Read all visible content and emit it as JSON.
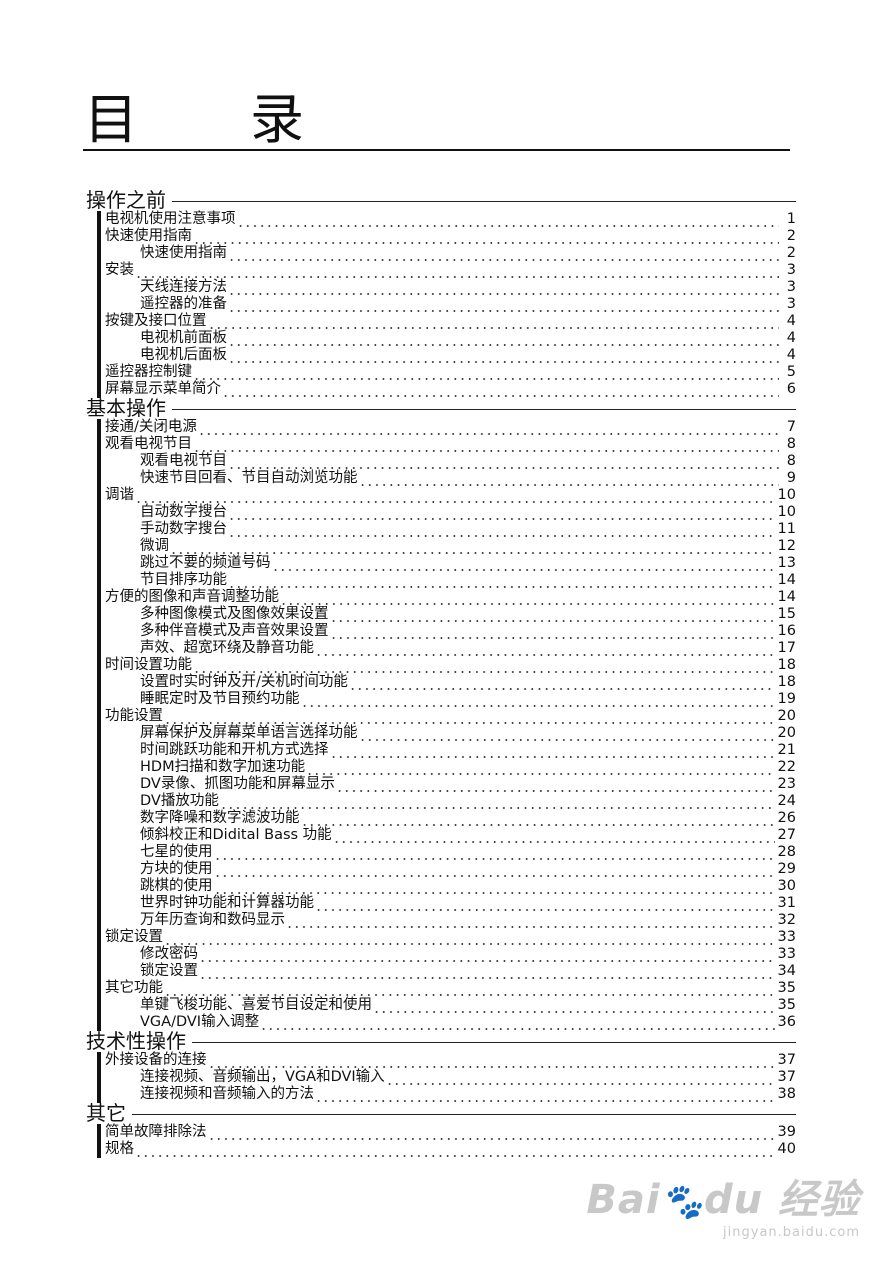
{
  "title": {
    "char1": "目",
    "char2": "录"
  },
  "sections": [
    {
      "heading": "操作之前",
      "entries": [
        {
          "level": 1,
          "text": "电视机使用注意事项",
          "page": "1"
        },
        {
          "level": 1,
          "text": "快速使用指南",
          "page": "2"
        },
        {
          "level": 2,
          "text": "快速使用指南",
          "page": "2"
        },
        {
          "level": 1,
          "text": "安装",
          "page": "3"
        },
        {
          "level": 2,
          "text": "天线连接方法",
          "page": "3"
        },
        {
          "level": 2,
          "text": "遥控器的准备",
          "page": "3"
        },
        {
          "level": 1,
          "text": "按键及接口位置",
          "page": "4"
        },
        {
          "level": 2,
          "text": "电视机前面板",
          "page": "4"
        },
        {
          "level": 2,
          "text": "电视机后面板",
          "page": "4"
        },
        {
          "level": 1,
          "text": "遥控器控制键",
          "page": "5"
        },
        {
          "level": 1,
          "text": "屏幕显示菜单简介",
          "page": "6"
        }
      ]
    },
    {
      "heading": "基本操作",
      "entries": [
        {
          "level": 1,
          "text": "接通/关闭电源",
          "page": "7"
        },
        {
          "level": 1,
          "text": "观看电视节目",
          "page": "8"
        },
        {
          "level": 2,
          "text": "观看电视节目",
          "page": "8"
        },
        {
          "level": 2,
          "text": "快速节目回看、节目自动浏览功能",
          "page": "9"
        },
        {
          "level": 1,
          "text": "调谐",
          "page": "10"
        },
        {
          "level": 2,
          "text": "自动数字搜台",
          "page": "10"
        },
        {
          "level": 2,
          "text": "手动数字搜台",
          "page": "11"
        },
        {
          "level": 2,
          "text": "微调",
          "page": "12"
        },
        {
          "level": 2,
          "text": "跳过不要的频道号码",
          "page": "13"
        },
        {
          "level": 2,
          "text": "节目排序功能",
          "page": "14"
        },
        {
          "level": 1,
          "text": "方便的图像和声音调整功能",
          "page": "14"
        },
        {
          "level": 2,
          "text": "多种图像模式及图像效果设置",
          "page": "15"
        },
        {
          "level": 2,
          "text": "多种伴音模式及声音效果设置",
          "page": "16"
        },
        {
          "level": 2,
          "text": "声效、超宽环绕及静音功能",
          "page": "17"
        },
        {
          "level": 1,
          "text": "时间设置功能",
          "page": "18"
        },
        {
          "level": 2,
          "text": "设置时实时钟及开/关机时间功能",
          "page": "18"
        },
        {
          "level": 2,
          "text": "睡眠定时及节目预约功能",
          "page": "19"
        },
        {
          "level": 1,
          "text": "功能设置",
          "page": "20"
        },
        {
          "level": 2,
          "text": "屏幕保护及屏幕菜单语言选择功能",
          "page": "20"
        },
        {
          "level": 2,
          "text": "时间跳跃功能和开机方式选择",
          "page": "21"
        },
        {
          "level": 2,
          "text": "HDM扫描和数字加速功能",
          "page": "22"
        },
        {
          "level": 2,
          "text": "DV录像、抓图功能和屏幕显示",
          "page": "23"
        },
        {
          "level": 2,
          "text": "DV播放功能",
          "page": "24"
        },
        {
          "level": 2,
          "text": "数字降噪和数字滤波功能",
          "page": "26"
        },
        {
          "level": 2,
          "text": "倾斜校正和Didital Bass 功能",
          "page": "27"
        },
        {
          "level": 2,
          "text": "七星的使用",
          "page": "28"
        },
        {
          "level": 2,
          "text": "方块的使用",
          "page": "29"
        },
        {
          "level": 2,
          "text": "跳棋的使用",
          "page": "30"
        },
        {
          "level": 2,
          "text": "世界时钟功能和计算器功能",
          "page": "31"
        },
        {
          "level": 2,
          "text": "万年历查询和数码显示",
          "page": "32"
        },
        {
          "level": 1,
          "text": "锁定设置",
          "page": "33"
        },
        {
          "level": 2,
          "text": "修改密码",
          "page": "33"
        },
        {
          "level": 2,
          "text": "锁定设置",
          "page": "34"
        },
        {
          "level": 1,
          "text": "其它功能",
          "page": "35"
        },
        {
          "level": 2,
          "text": "单键飞梭功能、喜爱节目设定和使用",
          "page": "35"
        },
        {
          "level": 2,
          "text": "VGA/DVI输入调整",
          "page": "36"
        }
      ]
    },
    {
      "heading": "技术性操作",
      "entries": [
        {
          "level": 1,
          "text": "外接设备的连接",
          "page": "37"
        },
        {
          "level": 2,
          "text": "连接视频、音频输出，VGA和DVI输入",
          "page": "37"
        },
        {
          "level": 2,
          "text": "连接视频和音频输入的方法",
          "page": "38"
        }
      ]
    },
    {
      "heading": "其它",
      "entries": [
        {
          "level": 1,
          "text": "简单故障排除法",
          "page": "39"
        },
        {
          "level": 1,
          "text": "规格",
          "page": "40"
        }
      ]
    }
  ],
  "watermark": {
    "logo": "Baidu经验",
    "url": "jingyan.baidu.com"
  }
}
